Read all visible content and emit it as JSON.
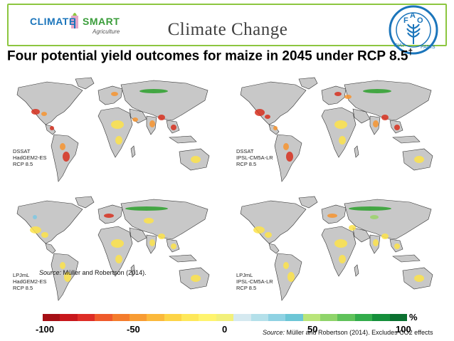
{
  "header": {
    "logo": {
      "word1": "CLIMATE",
      "word2": "SMART",
      "word3": "Agriculture"
    },
    "title": "Climate Change",
    "fao_logo": {
      "letters": "FAO",
      "motto": "FIAT PANIS"
    }
  },
  "subtitle": {
    "text": "Four potential yield outcomes for maize in 2045 under RCP 8.5",
    "marker": "†"
  },
  "panels": [
    {
      "id": "tl",
      "lines": [
        "DSSAT",
        "HadGEM2-ES",
        "RCP 8.5"
      ]
    },
    {
      "id": "tr",
      "lines": [
        "DSSAT",
        "IPSL-CM5A-LR",
        "RCP 8.5"
      ]
    },
    {
      "id": "bl",
      "lines": [
        "LPJmL",
        "HadGEM2-ES",
        "RCP 8.5"
      ]
    },
    {
      "id": "br",
      "lines": [
        "LPJmL",
        "IPSL-CM5A-LR",
        "RCP 8.5"
      ]
    }
  ],
  "source_inset": {
    "prefix": "Source:",
    "text": " Müller and Robertson (2014)."
  },
  "legend": {
    "unit": "%",
    "ticks": [
      "-100",
      "-50",
      "0",
      "50",
      "100"
    ],
    "range": [
      -100,
      100
    ],
    "colors": [
      "#a50f15",
      "#c8171c",
      "#de2d26",
      "#ef5a2b",
      "#f47c2c",
      "#f89c33",
      "#fbb93c",
      "#fdd447",
      "#fee85a",
      "#fff46e",
      "#f2f07a",
      "#d5e9f0",
      "#b4e0ea",
      "#8fd2e3",
      "#6cc6d6",
      "#b9e57a",
      "#8fd46a",
      "#5fc25a",
      "#32ac4b",
      "#158f3b",
      "#0b7030"
    ],
    "unit_color": "#000000"
  },
  "source_bottom": {
    "prefix": "Source:",
    "text": " Müller and Robertson (2014). Excludes CO2 effects"
  },
  "map_colors": {
    "land": "#c8c8c8",
    "border": "#333333",
    "red": "#d7301f",
    "orange": "#f7942f",
    "yellow": "#fde34a",
    "green": "#2ca02c",
    "lightgreen": "#9bd36a",
    "blue": "#7ec8e3"
  }
}
